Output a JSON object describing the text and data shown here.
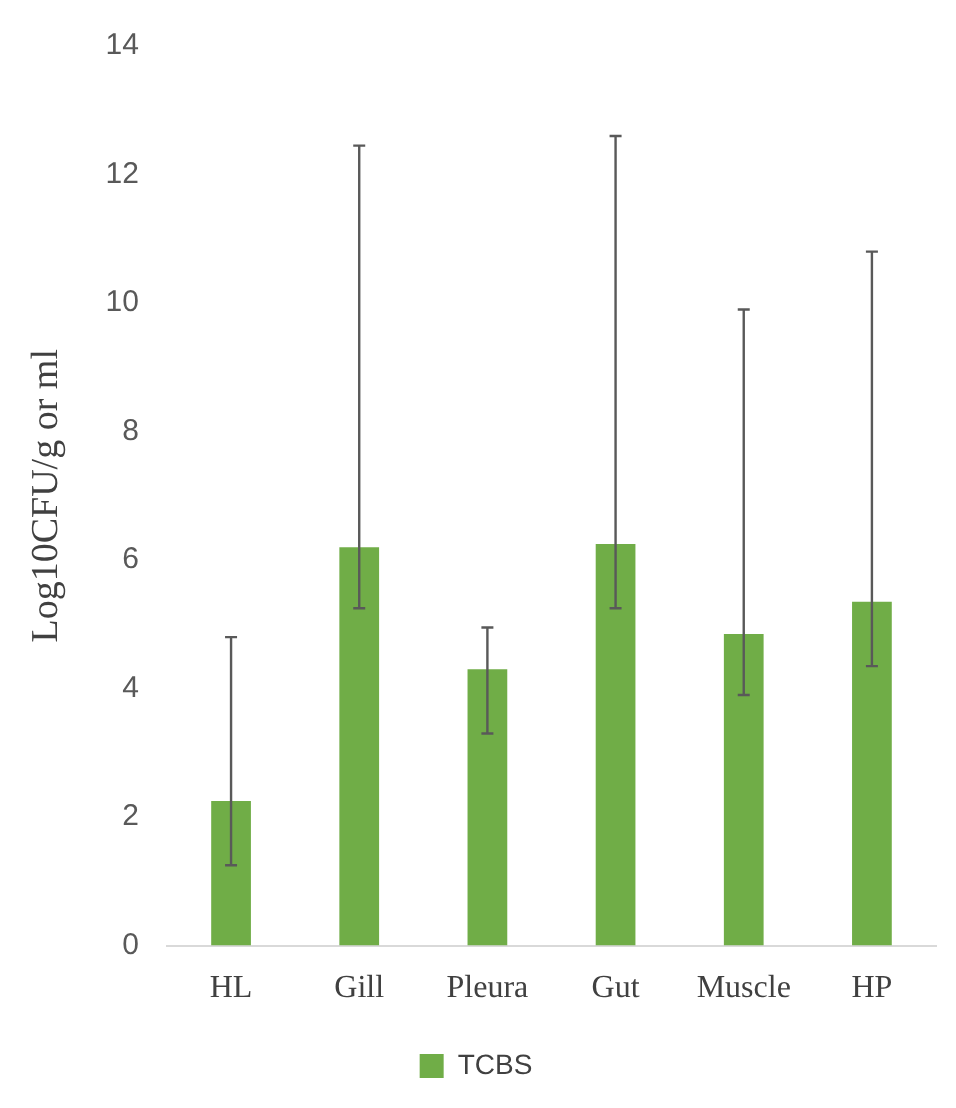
{
  "chart_data": {
    "type": "bar",
    "ylabel": "Log10CFU/g or ml",
    "categories": [
      "HL",
      "Gill",
      "Pleura",
      "Gut",
      "Muscle",
      "HP"
    ],
    "series": [
      {
        "name": "TCBS",
        "color": "#70ad47",
        "values": [
          2.25,
          6.2,
          4.3,
          6.25,
          4.85,
          5.35
        ],
        "errors": [
          [
            1.25,
            4.8
          ],
          [
            5.25,
            12.45
          ],
          [
            3.3,
            4.95
          ],
          [
            5.25,
            12.6
          ],
          [
            3.9,
            9.9
          ],
          [
            4.35,
            10.8
          ]
        ]
      }
    ],
    "ylim": [
      0,
      14
    ],
    "yticks": [
      0,
      2,
      4,
      6,
      8,
      10,
      12,
      14
    ],
    "grid": false,
    "legend": "bottom"
  }
}
